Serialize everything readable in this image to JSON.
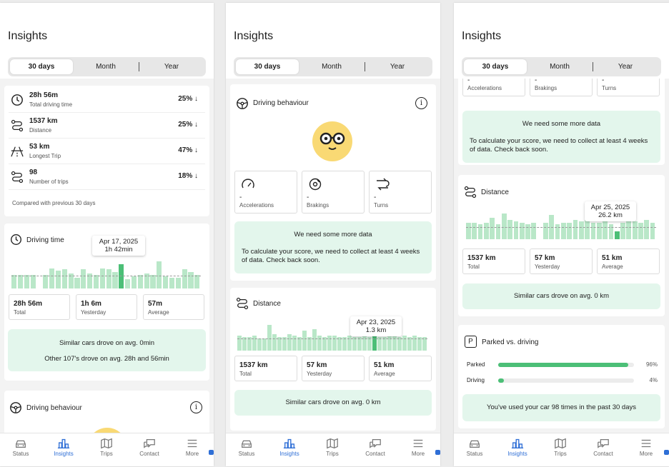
{
  "app": {
    "title": "Insights",
    "tabs": [
      "30 days",
      "Month",
      "Year"
    ],
    "nav": [
      "Status",
      "Insights",
      "Trips",
      "Contact",
      "More"
    ]
  },
  "screen1": {
    "stats": [
      {
        "value": "28h 56m",
        "label": "Total driving time",
        "change": "25% ↓",
        "icon": "clock-icon"
      },
      {
        "value": "1537 km",
        "label": "Distance",
        "change": "25% ↓",
        "icon": "route-icon"
      },
      {
        "value": "53 km",
        "label": "Longest Trip",
        "change": "47% ↓",
        "icon": "road-icon"
      },
      {
        "value": "98",
        "label": "Number of trips",
        "change": "18% ↓",
        "icon": "trips-icon"
      }
    ],
    "compare_note": "Compared with previous 30 days",
    "driving_time": {
      "title": "Driving time",
      "tooltip_date": "Apr 17, 2025",
      "tooltip_value": "1h 42min",
      "bars": [
        0.5,
        0.5,
        0.5,
        0.5,
        0,
        0.5,
        0.75,
        0.65,
        0.7,
        0.55,
        0.4,
        0.7,
        0.55,
        0.5,
        0.75,
        0.7,
        0.6,
        0.9,
        0.35,
        0.45,
        0.5,
        0.55,
        0.5,
        1.0,
        0.45,
        0.4,
        0.4,
        0.7,
        0.6,
        0.5
      ],
      "highlight": 17,
      "avg": 0.48,
      "summary": [
        {
          "value": "28h 56m",
          "label": "Total"
        },
        {
          "value": "1h 6m",
          "label": "Yesterday"
        },
        {
          "value": "57m",
          "label": "Average"
        }
      ],
      "similar": "Similar cars drove on avg. 0min",
      "other": "Other 107's drove on avg. 28h and 56min"
    },
    "driving_behaviour_title": "Driving behaviour"
  },
  "screen2": {
    "driving_behaviour_title": "Driving behaviour",
    "metrics": [
      {
        "value": "-",
        "label": "Accelerations",
        "icon": "gauge-icon"
      },
      {
        "value": "-",
        "label": "Brakings",
        "icon": "brake-icon"
      },
      {
        "value": "-",
        "label": "Turns",
        "icon": "turns-icon"
      }
    ],
    "notice_title": "We need some more data",
    "notice_body": "To calculate your score, we need to collect at least 4 weeks of data. Check back soon.",
    "distance": {
      "title": "Distance",
      "tooltip_date": "Apr 23, 2025",
      "tooltip_value": "1.3 km",
      "bars": [
        0.55,
        0.5,
        0.5,
        0.55,
        0.45,
        0.45,
        0.95,
        0.6,
        0.5,
        0.5,
        0.6,
        0.55,
        0.5,
        0.75,
        0.5,
        0.8,
        0.55,
        0.5,
        0.55,
        0.55,
        0.5,
        0.5,
        0.55,
        0.5,
        0.5,
        0.55,
        0.5,
        0.55,
        0.5,
        0.5,
        0.55,
        0.6,
        0.5,
        0.55,
        0.5,
        0.55,
        0.5,
        0.5
      ],
      "highlight": 27,
      "avg": 0.45,
      "summary": [
        {
          "value": "1537 km",
          "label": "Total"
        },
        {
          "value": "57 km",
          "label": "Yesterday"
        },
        {
          "value": "51 km",
          "label": "Average"
        }
      ],
      "similar": "Similar cars drove on avg. 0 km"
    }
  },
  "screen3": {
    "metrics": [
      {
        "value": "-",
        "label": "Accelerations"
      },
      {
        "value": "-",
        "label": "Brakings"
      },
      {
        "value": "-",
        "label": "Turns"
      }
    ],
    "notice_title": "We need some more data",
    "notice_body": "To calculate your score, we need to collect at least 4 weeks of data. Check back soon.",
    "distance": {
      "title": "Distance",
      "tooltip_date": "Apr 25, 2025",
      "tooltip_value": "26.2 km",
      "bars": [
        0.6,
        0.6,
        0.55,
        0.6,
        0.8,
        0.55,
        0.95,
        0.7,
        0.65,
        0.6,
        0.55,
        0.6,
        0,
        0.6,
        0.9,
        0.55,
        0.6,
        0.6,
        0.7,
        0.65,
        0.95,
        0.6,
        0.6,
        0.85,
        0.55,
        0.3,
        0.6,
        0.9,
        0.65,
        0.6,
        0.7,
        0.6
      ],
      "highlight": 25,
      "avg": 0.45,
      "summary": [
        {
          "value": "1537 km",
          "label": "Total"
        },
        {
          "value": "57 km",
          "label": "Yesterday"
        },
        {
          "value": "51 km",
          "label": "Average"
        }
      ],
      "similar": "Similar cars drove on avg. 0 km"
    },
    "parked": {
      "title": "Parked vs. driving",
      "rows": [
        {
          "label": "Parked",
          "pct": "96%",
          "fraction": 0.96
        },
        {
          "label": "Driving",
          "pct": "4%",
          "fraction": 0.04
        }
      ],
      "usage": "You've used your car 98 times in the past 30 days"
    }
  }
}
